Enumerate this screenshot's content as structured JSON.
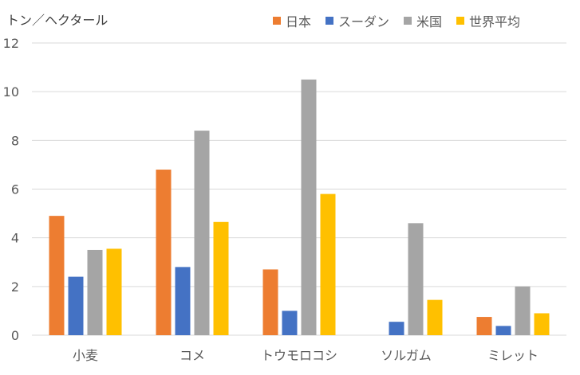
{
  "chart_data": {
    "type": "bar",
    "ylabel": "トン／ヘクタール",
    "categories": [
      "小麦",
      "コメ",
      "トウモロコシ",
      "ソルガム",
      "ミレット"
    ],
    "series": [
      {
        "name": "日本",
        "color": "#ED7D31",
        "values": [
          4.9,
          6.8,
          2.7,
          null,
          0.75
        ]
      },
      {
        "name": "スーダン",
        "color": "#4472C4",
        "values": [
          2.4,
          2.8,
          1.0,
          0.55,
          0.38
        ]
      },
      {
        "name": "米国",
        "color": "#A5A5A5",
        "values": [
          3.5,
          8.4,
          10.5,
          4.6,
          2.0
        ]
      },
      {
        "name": "世界平均",
        "color": "#FFC000",
        "values": [
          3.55,
          4.65,
          5.8,
          1.45,
          0.9
        ]
      }
    ],
    "ylim": [
      0,
      12
    ],
    "yticks": [
      0,
      2,
      4,
      6,
      8,
      10,
      12
    ],
    "grid": true,
    "legend_position": "top-right"
  }
}
